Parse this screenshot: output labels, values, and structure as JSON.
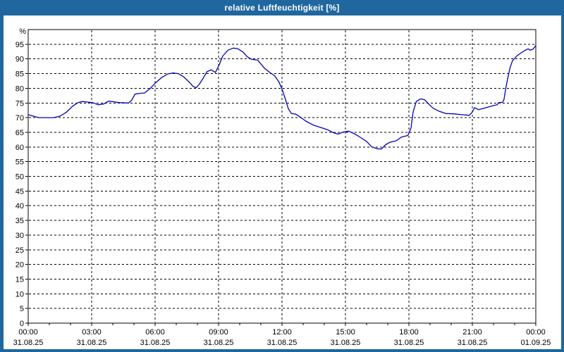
{
  "window": {
    "title": "relative Luftfeuchtigkeit [%]"
  },
  "colors": {
    "chrome": "#1f679e",
    "title_text": "#ffffff",
    "content_bg": "#ffffff",
    "line": "#0000bb",
    "grid": "#000000",
    "frame": "#000000",
    "label_text": "#000000"
  },
  "chart_data": {
    "type": "line",
    "title": "relative Luftfeuchtigkeit [%]",
    "ylabel": "%",
    "ylim": [
      0,
      100
    ],
    "yticks": [
      0,
      5,
      10,
      15,
      20,
      25,
      30,
      35,
      40,
      45,
      50,
      55,
      60,
      65,
      70,
      75,
      80,
      85,
      90,
      95
    ],
    "xlim_hours": [
      0,
      24
    ],
    "x_minor_tick_hours": 1,
    "grid": "dashed",
    "legend": "none",
    "xticks": [
      {
        "hour": 0,
        "time": "00:00",
        "date": "31.08.25"
      },
      {
        "hour": 3,
        "time": "03:00",
        "date": "31.08.25"
      },
      {
        "hour": 6,
        "time": "06:00",
        "date": "31.08.25"
      },
      {
        "hour": 9,
        "time": "09:00",
        "date": "31.08.25"
      },
      {
        "hour": 12,
        "time": "12:00",
        "date": "31.08.25"
      },
      {
        "hour": 15,
        "time": "15:00",
        "date": "31.08.25"
      },
      {
        "hour": 18,
        "time": "18:00",
        "date": "31.08.25"
      },
      {
        "hour": 21,
        "time": "21:00",
        "date": "31.08.25"
      },
      {
        "hour": 24,
        "time": "00:00",
        "date": "01.09.25"
      }
    ],
    "series": [
      {
        "name": "relative Luftfeuchtigkeit",
        "unit": "%",
        "points": [
          [
            0,
            71
          ],
          [
            0.2,
            70.6
          ],
          [
            0.5,
            70
          ],
          [
            1.2,
            70
          ],
          [
            1.5,
            70.5
          ],
          [
            1.8,
            71.8
          ],
          [
            2.1,
            73.9
          ],
          [
            2.35,
            75.1
          ],
          [
            2.55,
            75.5
          ],
          [
            2.8,
            75.3
          ],
          [
            3.05,
            75.1
          ],
          [
            3.3,
            74.4
          ],
          [
            3.55,
            74.6
          ],
          [
            3.8,
            75.6
          ],
          [
            4.05,
            75.4
          ],
          [
            4.3,
            75.1
          ],
          [
            4.75,
            75
          ],
          [
            4.9,
            76
          ],
          [
            5.05,
            78
          ],
          [
            5.3,
            78.3
          ],
          [
            5.5,
            78.4
          ],
          [
            5.75,
            79.8
          ],
          [
            6,
            81.7
          ],
          [
            6.3,
            83.6
          ],
          [
            6.6,
            84.9
          ],
          [
            6.85,
            85.2
          ],
          [
            7.1,
            85
          ],
          [
            7.35,
            83.9
          ],
          [
            7.6,
            82.2
          ],
          [
            7.8,
            80.6
          ],
          [
            7.95,
            80.2
          ],
          [
            8.1,
            81.5
          ],
          [
            8.3,
            83.8
          ],
          [
            8.45,
            85.6
          ],
          [
            8.65,
            86.3
          ],
          [
            8.85,
            85.4
          ],
          [
            9,
            87.5
          ],
          [
            9.2,
            91
          ],
          [
            9.45,
            93
          ],
          [
            9.7,
            93.7
          ],
          [
            9.9,
            93.5
          ],
          [
            10.15,
            92.4
          ],
          [
            10.35,
            90.8
          ],
          [
            10.55,
            89.9
          ],
          [
            10.85,
            89.6
          ],
          [
            11.15,
            87
          ],
          [
            11.4,
            85.5
          ],
          [
            11.65,
            84.3
          ],
          [
            11.85,
            82.2
          ],
          [
            12,
            79.8
          ],
          [
            12.15,
            76.5
          ],
          [
            12.3,
            73
          ],
          [
            12.45,
            71.4
          ],
          [
            12.65,
            71.2
          ],
          [
            12.9,
            70
          ],
          [
            13.15,
            68.7
          ],
          [
            13.5,
            67.4
          ],
          [
            13.85,
            66.6
          ],
          [
            14.15,
            65.9
          ],
          [
            14.45,
            64.8
          ],
          [
            14.65,
            64.4
          ],
          [
            14.9,
            65.1
          ],
          [
            15.15,
            65.4
          ],
          [
            15.4,
            64.6
          ],
          [
            15.7,
            63.3
          ],
          [
            16,
            61.9
          ],
          [
            16.25,
            60
          ],
          [
            16.5,
            59.4
          ],
          [
            16.7,
            59.3
          ],
          [
            16.9,
            60.8
          ],
          [
            17.1,
            61.6
          ],
          [
            17.4,
            62.1
          ],
          [
            17.65,
            63.4
          ],
          [
            17.95,
            63.9
          ],
          [
            18.1,
            66.5
          ],
          [
            18.2,
            72
          ],
          [
            18.35,
            75.5
          ],
          [
            18.55,
            76.4
          ],
          [
            18.75,
            76.1
          ],
          [
            18.95,
            74.5
          ],
          [
            19.15,
            73.2
          ],
          [
            19.45,
            72.1
          ],
          [
            19.75,
            71.4
          ],
          [
            20.1,
            71.3
          ],
          [
            20.5,
            71
          ],
          [
            20.85,
            70.8
          ],
          [
            21,
            71.9
          ],
          [
            21.1,
            73.4
          ],
          [
            21.3,
            72.7
          ],
          [
            21.65,
            73.4
          ],
          [
            22,
            74.1
          ],
          [
            22.17,
            74.4
          ],
          [
            22.25,
            75.1
          ],
          [
            22.43,
            75.2
          ],
          [
            22.5,
            76.3
          ],
          [
            22.57,
            79.6
          ],
          [
            22.67,
            83.3
          ],
          [
            22.78,
            87
          ],
          [
            22.9,
            89.4
          ],
          [
            23.1,
            91
          ],
          [
            23.33,
            92.2
          ],
          [
            23.56,
            93.2
          ],
          [
            23.65,
            93.4
          ],
          [
            23.73,
            93
          ],
          [
            23.87,
            93.3
          ],
          [
            24,
            94.6
          ]
        ]
      }
    ]
  }
}
